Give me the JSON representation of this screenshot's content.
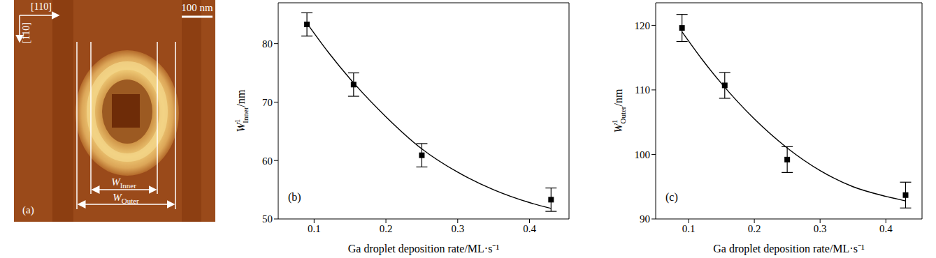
{
  "image": {
    "panel": "(a)",
    "direction_x": "[110]",
    "direction_y": "[1̄10]",
    "scale_bar": "100 nm",
    "inner_label": {
      "symbol": "W",
      "sub": "Inner"
    },
    "outer_label": {
      "symbol": "W",
      "sub": "Outer"
    }
  },
  "chart_data": [
    {
      "type": "scatter",
      "panel": "(b)",
      "x_label": "Ga droplet deposition rate/ML·s⁻¹",
      "y_label": {
        "symbol": "W",
        "sup": "1",
        "sub": "Inner",
        "unit": "/nm"
      },
      "xlim": [
        0.05,
        0.455
      ],
      "xticks": [
        0.1,
        0.2,
        0.3,
        0.4
      ],
      "ylim": [
        50,
        87
      ],
      "yticks": [
        50,
        60,
        70,
        80
      ],
      "series": [
        {
          "type": "scatter",
          "marker": "square",
          "color": "#000000",
          "x": [
            0.09,
            0.155,
            0.25,
            0.43
          ],
          "values": [
            83.3,
            73.0,
            60.9,
            53.3
          ],
          "errors": [
            2.0,
            2.0,
            2.0,
            2.0
          ]
        },
        {
          "type": "line",
          "color": "#000000",
          "x": [
            0.09,
            0.12,
            0.15,
            0.2,
            0.25,
            0.3,
            0.35,
            0.4,
            0.43
          ],
          "values": [
            83.5,
            78.5,
            74.0,
            67.5,
            62.0,
            58.0,
            55.0,
            52.8,
            51.8
          ]
        }
      ]
    },
    {
      "type": "scatter",
      "panel": "(c)",
      "x_label": "Ga droplet deposition rate/ML·s⁻¹",
      "y_label": {
        "symbol": "W",
        "sup": "1",
        "sub": "Outer",
        "unit": "/nm"
      },
      "xlim": [
        0.05,
        0.455
      ],
      "xticks": [
        0.1,
        0.2,
        0.3,
        0.4
      ],
      "ylim": [
        90,
        123.5
      ],
      "yticks": [
        90,
        100,
        110,
        120
      ],
      "series": [
        {
          "type": "scatter",
          "marker": "square",
          "color": "#000000",
          "x": [
            0.09,
            0.155,
            0.25,
            0.43
          ],
          "values": [
            119.6,
            110.7,
            99.2,
            93.7
          ],
          "errors": [
            2.1,
            2.0,
            2.0,
            2.0
          ]
        },
        {
          "type": "line",
          "color": "#000000",
          "x": [
            0.09,
            0.12,
            0.15,
            0.2,
            0.25,
            0.3,
            0.35,
            0.4,
            0.43
          ],
          "values": [
            119.0,
            114.8,
            111.0,
            105.5,
            101.0,
            97.5,
            95.0,
            93.5,
            92.8
          ]
        }
      ]
    }
  ]
}
